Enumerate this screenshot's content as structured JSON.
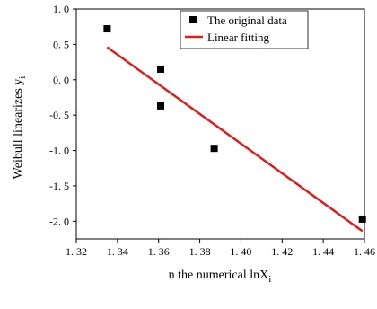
{
  "chart_data": {
    "type": "scatter",
    "title": "",
    "xlabel": "n the numerical lnX",
    "xlabel_sub": "i",
    "ylabel": "Weibull linearizes y",
    "ylabel_sub": "i",
    "xlim": [
      1.32,
      1.46
    ],
    "ylim": [
      -2.25,
      1.0
    ],
    "xticks": [
      1.32,
      1.34,
      1.36,
      1.38,
      1.4,
      1.42,
      1.44,
      1.46
    ],
    "xtick_labels": [
      "1. 32",
      "1. 34",
      "1. 36",
      "1. 38",
      "1. 40",
      "1. 42",
      "1. 44",
      "1. 46"
    ],
    "yticks": [
      1.0,
      0.5,
      0.0,
      -0.5,
      -1.0,
      -1.5,
      -2.0
    ],
    "ytick_labels": [
      "1. 0",
      "0. 5",
      "0. 0",
      "-0. 5",
      "-1. 0",
      "-1. 5",
      "-2. 0"
    ],
    "grid": false,
    "legend_position": "top-right",
    "series": [
      {
        "name": "The original data",
        "kind": "scatter",
        "marker": "square",
        "color": "#000000",
        "points": [
          {
            "x": 1.335,
            "y": 0.72
          },
          {
            "x": 1.361,
            "y": 0.15
          },
          {
            "x": 1.361,
            "y": -0.37
          },
          {
            "x": 1.387,
            "y": -0.97
          },
          {
            "x": 1.459,
            "y": -1.97
          }
        ]
      },
      {
        "name": "Linear fitting",
        "kind": "line",
        "color": "#e31a1c",
        "points": [
          {
            "x": 1.335,
            "y": 0.46
          },
          {
            "x": 1.459,
            "y": -2.14
          }
        ]
      }
    ]
  }
}
